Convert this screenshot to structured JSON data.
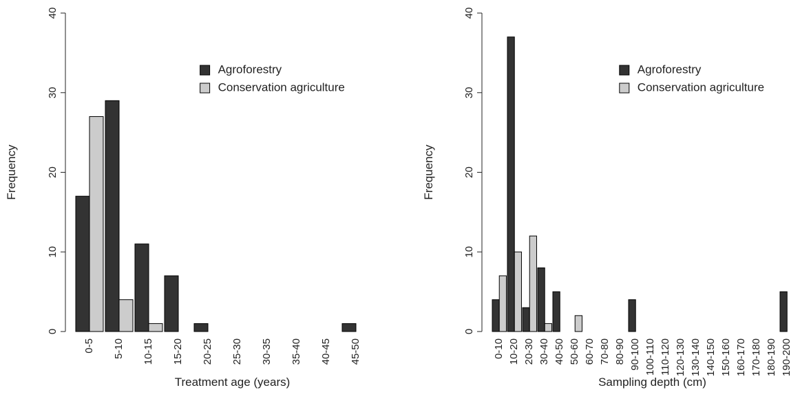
{
  "chart_data": [
    {
      "type": "bar",
      "x_label": "Treatment age (years)",
      "y_label": "Frequency",
      "categories": [
        "0-5",
        "5-10",
        "10-15",
        "15-20",
        "20-25",
        "25-30",
        "30-35",
        "35-40",
        "40-45",
        "45-50"
      ],
      "series": [
        {
          "name": "Agroforestry",
          "color": "#333333",
          "values": [
            17,
            29,
            11,
            7,
            1,
            0,
            0,
            0,
            0,
            1
          ]
        },
        {
          "name": "Conservation agriculture",
          "color": "#cccccc",
          "values": [
            27,
            4,
            1,
            0,
            0,
            0,
            0,
            0,
            0,
            0
          ]
        }
      ],
      "ylim": [
        0,
        40
      ],
      "yticks": [
        0,
        10,
        20,
        30,
        40
      ],
      "legend": "top-right"
    },
    {
      "type": "bar",
      "x_label": "Sampling depth (cm)",
      "y_label": "Frequency",
      "categories": [
        "0-10",
        "10-20",
        "20-30",
        "30-40",
        "40-50",
        "50-60",
        "60-70",
        "70-80",
        "80-90",
        "90-100",
        "100-110",
        "110-120",
        "120-130",
        "130-140",
        "140-150",
        "150-160",
        "160-170",
        "170-180",
        "180-190",
        "190-200"
      ],
      "series": [
        {
          "name": "Agroforestry",
          "color": "#333333",
          "values": [
            4,
            37,
            3,
            8,
            5,
            0,
            0,
            0,
            0,
            4,
            0,
            0,
            0,
            0,
            0,
            0,
            0,
            0,
            0,
            5
          ]
        },
        {
          "name": "Conservation agriculture",
          "color": "#cccccc",
          "values": [
            7,
            10,
            12,
            1,
            0,
            2,
            0,
            0,
            0,
            0,
            0,
            0,
            0,
            0,
            0,
            0,
            0,
            0,
            0,
            0
          ]
        }
      ],
      "ylim": [
        0,
        40
      ],
      "yticks": [
        0,
        10,
        20,
        30,
        40
      ],
      "legend": "top-right"
    }
  ]
}
